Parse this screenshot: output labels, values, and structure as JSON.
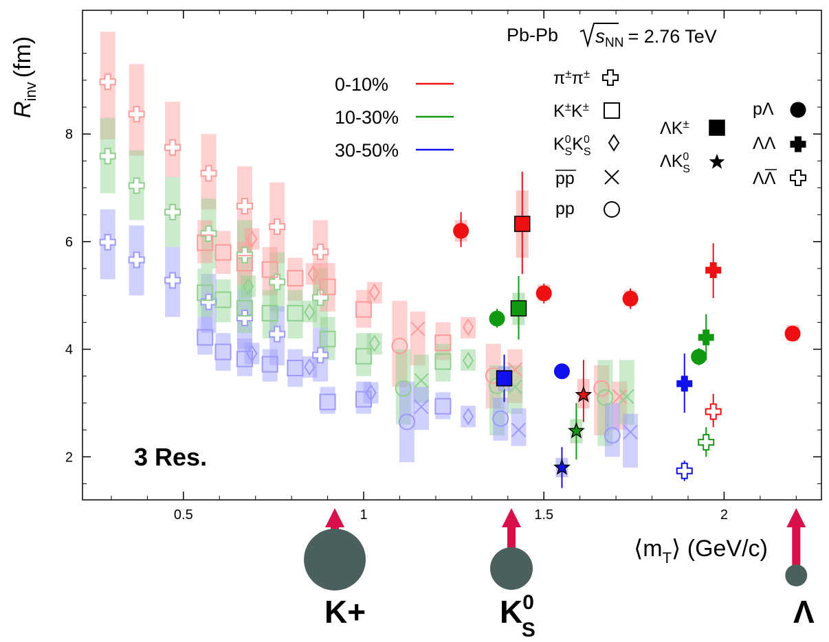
{
  "chart_data": {
    "type": "scatter",
    "xlim": [
      0.22,
      2.27
    ],
    "ylim": [
      1.2,
      10.3
    ],
    "x_ticks": [
      0.5,
      1,
      1.5,
      2
    ],
    "x_tick_labels": [
      "0.5",
      "1",
      "1.5",
      "2"
    ],
    "y_ticks": [
      2,
      4,
      6,
      8
    ],
    "y_tick_labels": [
      "2",
      "4",
      "6",
      "8"
    ],
    "ylabel_main": "R",
    "ylabel_sub": "inv",
    "ylabel_unit": "(fm)",
    "xlabel_open": "⟨m",
    "xlabel_sub": "T",
    "xlabel_close": "⟩ (GeV/c",
    "xlabel_end": ")",
    "system_prefix": "Pb-Pb",
    "system_s": "s",
    "system_sub": "NN",
    "system_suffix": "= 2.76 TeV",
    "resolution_note": "3 Res.",
    "grid": false,
    "centrality_legend": [
      {
        "label": "0-10%",
        "color": "#ee1111"
      },
      {
        "label": "10-30%",
        "color": "#119911"
      },
      {
        "label": "30-50%",
        "color": "#1111ee"
      }
    ],
    "species_legend": [
      {
        "label": "π±π±",
        "marker": "cross-open"
      },
      {
        "label": "K±K±",
        "marker": "square-open"
      },
      {
        "label": "K0SK0S",
        "marker": "diamond-open"
      },
      {
        "label": "pp (anti)",
        "marker": "x"
      },
      {
        "label": "pp",
        "marker": "circle-open"
      },
      {
        "label": "ΛK±",
        "marker": "square-filled"
      },
      {
        "label": "ΛK0S",
        "marker": "star-filled"
      },
      {
        "label": "pΛ",
        "marker": "circle-filled"
      },
      {
        "label": "ΛΛ",
        "marker": "cross-filled"
      },
      {
        "label": "ΛΛ (anti)",
        "marker": "cross-open"
      }
    ],
    "legend_text": {
      "pipi_a": "π",
      "pipi_b": "±",
      "pipi_c": "π",
      "pipi_d": "±",
      "kk_a": "K",
      "kk_b": "±",
      "kk_c": "K",
      "kk_d": "±",
      "k0_a": "K",
      "k0_b": "0",
      "k0_c": "S",
      "k0_d": "K",
      "k0_e": "0",
      "k0_f": "S",
      "pbar": "pp",
      "pp": "pp",
      "lk_a": "ΛK",
      "lk_b": "±",
      "lk0_a": "ΛK",
      "lk0_b": "0",
      "lk0_c": "S",
      "pl": "pΛ",
      "ll": "ΛΛ",
      "llbar_a": "Λ",
      "llbar_b": "Λ"
    },
    "series": [
      {
        "name": "π±π±",
        "centrality": "0-10%",
        "marker": "cross-open",
        "faint": true,
        "x": [
          0.29,
          0.37,
          0.47,
          0.57,
          0.67,
          0.76,
          0.88
        ],
        "y": [
          8.97,
          8.37,
          7.75,
          7.27,
          6.66,
          6.28,
          5.81
        ],
        "sys_low": [
          7.9,
          7.6,
          7.2,
          6.6,
          5.8,
          5.6,
          5.0
        ],
        "sys_high": [
          9.9,
          9.3,
          8.6,
          8.0,
          7.4,
          7.1,
          6.4
        ]
      },
      {
        "name": "π±π±",
        "centrality": "10-30%",
        "marker": "cross-open",
        "faint": true,
        "x": [
          0.29,
          0.37,
          0.47,
          0.57,
          0.67,
          0.76,
          0.88
        ],
        "y": [
          7.59,
          7.04,
          6.55,
          6.15,
          5.75,
          5.25,
          4.96
        ],
        "sys_low": [
          6.9,
          6.4,
          5.9,
          5.5,
          5.1,
          4.7,
          4.4
        ],
        "sys_high": [
          8.3,
          7.7,
          7.2,
          6.8,
          6.4,
          5.8,
          5.5
        ]
      },
      {
        "name": "π±π±",
        "centrality": "30-50%",
        "marker": "cross-open",
        "faint": true,
        "x": [
          0.29,
          0.37,
          0.47,
          0.57,
          0.67,
          0.76,
          0.88
        ],
        "y": [
          5.99,
          5.66,
          5.28,
          4.88,
          4.58,
          4.28,
          3.89
        ],
        "sys_low": [
          5.3,
          5.0,
          4.6,
          4.3,
          4.0,
          3.7,
          3.4
        ],
        "sys_high": [
          6.6,
          6.3,
          5.9,
          5.4,
          5.1,
          4.8,
          4.4
        ]
      },
      {
        "name": "K±K±",
        "centrality": "0-10%",
        "marker": "square-open",
        "faint": true,
        "x": [
          0.56,
          0.61,
          0.67,
          0.74,
          0.81,
          0.9,
          1.0,
          1.22
        ],
        "y": [
          5.98,
          5.8,
          5.6,
          5.48,
          5.32,
          5.16,
          4.74,
          4.12
        ],
        "sys_low": [
          5.6,
          5.4,
          5.2,
          5.0,
          4.9,
          4.7,
          4.4,
          3.8
        ],
        "sys_high": [
          6.4,
          6.2,
          6.0,
          5.9,
          5.7,
          5.6,
          5.1,
          4.5
        ]
      },
      {
        "name": "K±K±",
        "centrality": "10-30%",
        "marker": "square-open",
        "faint": true,
        "x": [
          0.56,
          0.61,
          0.67,
          0.74,
          0.81,
          0.9,
          1.0,
          1.22
        ],
        "y": [
          5.05,
          4.92,
          4.76,
          4.67,
          4.67,
          4.19,
          3.87,
          3.77
        ],
        "sys_low": [
          4.6,
          4.5,
          4.3,
          4.2,
          4.2,
          3.8,
          3.5,
          3.4
        ],
        "sys_high": [
          5.5,
          5.3,
          5.2,
          5.1,
          5.1,
          4.6,
          4.3,
          4.1
        ]
      },
      {
        "name": "K±K±",
        "centrality": "30-50%",
        "marker": "square-open",
        "faint": true,
        "x": [
          0.56,
          0.61,
          0.67,
          0.74,
          0.81,
          0.9,
          1.0,
          1.22
        ],
        "y": [
          4.22,
          3.95,
          3.82,
          3.72,
          3.65,
          3.02,
          3.07,
          2.94
        ],
        "sys_low": [
          3.9,
          3.6,
          3.5,
          3.4,
          3.3,
          2.8,
          2.8,
          2.7
        ],
        "sys_high": [
          4.6,
          4.3,
          4.2,
          4.0,
          4.0,
          3.3,
          3.4,
          3.2
        ]
      },
      {
        "name": "K0SK0S",
        "centrality": "0-10%",
        "marker": "diamond-open",
        "faint": true,
        "x": [
          0.69,
          0.86,
          1.03,
          1.29
        ],
        "y": [
          6.05,
          5.4,
          5.06,
          4.41
        ],
        "sys_low": [
          5.85,
          5.2,
          4.85,
          4.2
        ],
        "sys_high": [
          6.25,
          5.6,
          5.25,
          4.6
        ]
      },
      {
        "name": "K0SK0S",
        "centrality": "10-30%",
        "marker": "diamond-open",
        "faint": true,
        "x": [
          0.68,
          0.85,
          1.03,
          1.29
        ],
        "y": [
          5.17,
          4.69,
          4.11,
          3.79
        ],
        "sys_low": [
          4.97,
          4.5,
          3.9,
          3.6
        ],
        "sys_high": [
          5.37,
          4.9,
          4.3,
          4.0
        ]
      },
      {
        "name": "K0SK0S",
        "centrality": "30-50%",
        "marker": "diamond-open",
        "faint": true,
        "x": [
          0.69,
          0.85,
          1.02,
          1.29
        ],
        "y": [
          3.92,
          3.67,
          3.19,
          2.75
        ],
        "sys_low": [
          3.72,
          3.47,
          2.99,
          2.55
        ],
        "sys_high": [
          4.12,
          3.87,
          3.39,
          2.95
        ]
      },
      {
        "name": "pp (anti)",
        "centrality": "0-10%",
        "marker": "x",
        "faint": true,
        "x": [
          1.15,
          1.42,
          1.71
        ],
        "y": [
          4.38,
          3.62,
          3.12
        ],
        "sys_low": [
          3.7,
          3.0,
          2.5
        ],
        "sys_high": [
          4.7,
          4.0,
          3.4
        ]
      },
      {
        "name": "pp (anti)",
        "centrality": "10-30%",
        "marker": "x",
        "faint": true,
        "x": [
          1.16,
          1.42,
          1.73
        ],
        "y": [
          3.42,
          3.3,
          3.12
        ],
        "sys_low": [
          3.0,
          2.8,
          2.6
        ],
        "sys_high": [
          3.9,
          3.7,
          3.8
        ]
      },
      {
        "name": "pp (anti)",
        "centrality": "30-50%",
        "marker": "x",
        "faint": true,
        "x": [
          1.16,
          1.43,
          1.74
        ],
        "y": [
          2.93,
          2.5,
          2.46
        ],
        "sys_low": [
          2.5,
          2.2,
          1.8
        ],
        "sys_high": [
          3.3,
          2.9,
          2.8
        ]
      },
      {
        "name": "pp",
        "centrality": "0-10%",
        "marker": "circle-open",
        "faint": true,
        "x": [
          1.1,
          1.36,
          1.66
        ],
        "y": [
          4.06,
          3.51,
          3.27
        ],
        "sys_low": [
          3.3,
          2.9,
          2.4
        ],
        "sys_high": [
          4.9,
          4.1,
          3.7
        ]
      },
      {
        "name": "pp",
        "centrality": "10-30%",
        "marker": "circle-open",
        "faint": true,
        "x": [
          1.11,
          1.37,
          1.67
        ],
        "y": [
          3.27,
          3.32,
          3.1
        ],
        "sys_low": [
          2.6,
          2.4,
          2.2
        ],
        "sys_high": [
          4.0,
          3.7,
          3.8
        ]
      },
      {
        "name": "pp",
        "centrality": "30-50%",
        "marker": "circle-open",
        "faint": true,
        "x": [
          1.12,
          1.38,
          1.69
        ],
        "y": [
          2.65,
          2.71,
          2.4
        ],
        "sys_low": [
          1.9,
          2.3,
          2.0
        ],
        "sys_high": [
          3.4,
          3.1,
          3.0
        ]
      },
      {
        "name": "pΛ",
        "centrality": "0-10%",
        "marker": "circle-filled",
        "faint": false,
        "x": [
          1.27,
          1.5,
          1.74,
          2.19
        ],
        "y": [
          6.2,
          5.04,
          4.94,
          4.29
        ],
        "stat_low": [
          5.9,
          4.85,
          4.75,
          4.15
        ],
        "stat_high": [
          6.55,
          5.22,
          5.13,
          4.43
        ],
        "sys_low": [
          6.0,
          4.9,
          4.8,
          4.15
        ],
        "sys_high": [
          6.4,
          5.2,
          5.1,
          4.45
        ]
      },
      {
        "name": "pΛ",
        "centrality": "10-30%",
        "marker": "circle-filled",
        "faint": false,
        "x": [
          1.37,
          1.93
        ],
        "y": [
          4.57,
          3.86
        ],
        "stat_low": [
          4.4,
          3.7
        ],
        "stat_high": [
          4.75,
          4.02
        ]
      },
      {
        "name": "pΛ",
        "centrality": "30-50%",
        "marker": "circle-filled",
        "faint": false,
        "x": [
          1.55
        ],
        "y": [
          3.59
        ],
        "stat_low": [
          3.48
        ],
        "stat_high": [
          3.7
        ]
      },
      {
        "name": "ΛK±",
        "centrality": "0-10%",
        "marker": "square-filled",
        "faint": false,
        "x": [
          1.44
        ],
        "y": [
          6.33
        ],
        "stat_low": [
          5.4
        ],
        "stat_high": [
          7.3
        ],
        "sys_low": [
          5.7
        ],
        "sys_high": [
          6.95
        ]
      },
      {
        "name": "ΛK±",
        "centrality": "10-30%",
        "marker": "square-filled",
        "faint": false,
        "x": [
          1.43
        ],
        "y": [
          4.76
        ],
        "stat_low": [
          4.18
        ],
        "stat_high": [
          5.36
        ],
        "sys_low": [
          4.45
        ],
        "sys_high": [
          5.05
        ]
      },
      {
        "name": "ΛK±",
        "centrality": "30-50%",
        "marker": "square-filled",
        "faint": false,
        "x": [
          1.39
        ],
        "y": [
          3.46
        ],
        "stat_low": [
          3.02
        ],
        "stat_high": [
          3.9
        ],
        "sys_low": [
          3.22
        ],
        "sys_high": [
          3.68
        ]
      },
      {
        "name": "ΛK0S",
        "centrality": "0-10%",
        "marker": "star-filled",
        "faint": false,
        "x": [
          1.61
        ],
        "y": [
          3.15
        ],
        "stat_low": [
          2.65
        ],
        "stat_high": [
          3.8
        ],
        "sys_low": [
          2.9
        ],
        "sys_high": [
          3.45
        ]
      },
      {
        "name": "ΛK0S",
        "centrality": "10-30%",
        "marker": "star-filled",
        "faint": false,
        "x": [
          1.59
        ],
        "y": [
          2.48
        ],
        "stat_low": [
          1.95
        ],
        "stat_high": [
          3.0
        ],
        "sys_low": [
          2.25
        ],
        "sys_high": [
          2.7
        ]
      },
      {
        "name": "ΛK0S",
        "centrality": "30-50%",
        "marker": "star-filled",
        "faint": false,
        "x": [
          1.55
        ],
        "y": [
          1.8
        ],
        "stat_low": [
          1.42
        ],
        "stat_high": [
          2.18
        ],
        "sys_low": [
          1.62
        ],
        "sys_high": [
          1.98
        ]
      },
      {
        "name": "ΛΛ",
        "centrality": "0-10%",
        "marker": "cross-filled",
        "faint": false,
        "x": [
          1.97
        ],
        "y": [
          5.47
        ],
        "stat_low": [
          4.95
        ],
        "stat_high": [
          5.97
        ]
      },
      {
        "name": "ΛΛ",
        "centrality": "10-30%",
        "marker": "cross-filled",
        "faint": false,
        "x": [
          1.95
        ],
        "y": [
          4.22
        ],
        "stat_low": [
          3.8
        ],
        "stat_high": [
          4.65
        ]
      },
      {
        "name": "ΛΛ",
        "centrality": "30-50%",
        "marker": "cross-filled",
        "faint": false,
        "x": [
          1.89
        ],
        "y": [
          3.36
        ],
        "stat_low": [
          2.82
        ],
        "stat_high": [
          3.92
        ]
      },
      {
        "name": "ΛΛ (anti)",
        "centrality": "0-10%",
        "marker": "cross-open",
        "faint": false,
        "x": [
          1.97
        ],
        "y": [
          2.84
        ],
        "stat_low": [
          2.55
        ],
        "stat_high": [
          3.17
        ]
      },
      {
        "name": "ΛΛ (anti)",
        "centrality": "10-30%",
        "marker": "cross-open",
        "faint": false,
        "x": [
          1.95
        ],
        "y": [
          2.27
        ],
        "stat_low": [
          2.0
        ],
        "stat_high": [
          2.55
        ]
      },
      {
        "name": "ΛΛ (anti)",
        "centrality": "30-50%",
        "marker": "cross-open",
        "faint": false,
        "x": [
          1.89
        ],
        "y": [
          1.74
        ],
        "stat_low": [
          1.55
        ],
        "stat_high": [
          1.93
        ]
      }
    ],
    "mass_markers": [
      {
        "x": 0.92,
        "size": "large",
        "label": "K+"
      },
      {
        "x": 1.41,
        "size": "medium",
        "label_main": "K",
        "label_sup": "0",
        "label_sub": "S"
      },
      {
        "x": 2.2,
        "size": "small",
        "label": "Λ"
      }
    ],
    "mass_marker_color": "#4b5f5f",
    "arrow_color": "#d8104a"
  }
}
